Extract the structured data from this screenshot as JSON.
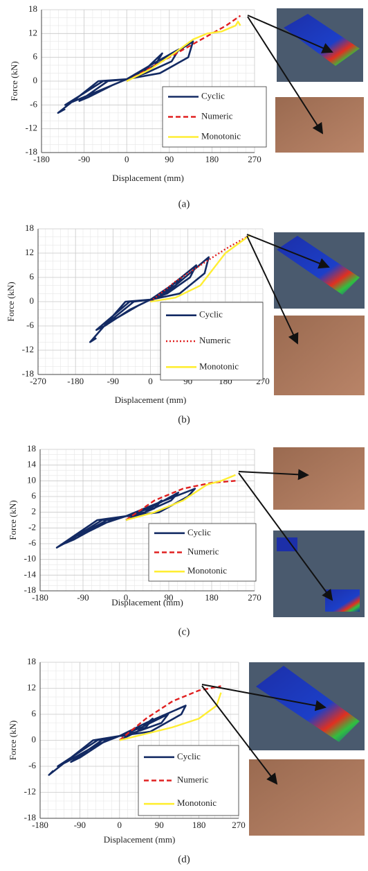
{
  "chart_data": [
    {
      "type": "line",
      "caption": "(a)",
      "y_label": "Force (kN)",
      "x_label": "Displacement (mm)",
      "xlim": [
        -180,
        270
      ],
      "xticks": [
        -180,
        -90,
        0,
        90,
        180,
        270
      ],
      "ylim": [
        -18,
        18
      ],
      "yticks": [
        -18,
        -12,
        -6,
        0,
        6,
        12,
        18
      ],
      "grid": true,
      "legend": "lower right",
      "series": [
        {
          "name": "Cyclic",
          "color": "#132a63",
          "dash": "solid",
          "x": [
            0,
            40,
            75,
            60,
            20,
            0,
            -40,
            -100,
            -80,
            -30,
            0,
            50,
            110,
            95,
            40,
            0,
            -50,
            -130,
            -110,
            -50,
            0,
            60,
            140,
            130,
            70,
            0,
            -60,
            -145,
            -130
          ],
          "values": [
            0,
            3,
            7,
            4,
            1,
            0.5,
            0,
            -5,
            -4,
            -1,
            0.5,
            4,
            8,
            5,
            2,
            0.5,
            0,
            -6,
            -5,
            -2,
            0.5,
            4,
            10,
            6,
            2,
            0.5,
            0,
            -8,
            -7
          ]
        },
        {
          "name": "Numeric",
          "color": "#e02020",
          "dash": "dashed",
          "x": [
            0,
            60,
            120,
            180,
            210,
            240
          ],
          "values": [
            0,
            4,
            8,
            12,
            14,
            16.5
          ]
        },
        {
          "name": "Monotonic",
          "color": "#ffee33",
          "dash": "solid",
          "x": [
            0,
            50,
            100,
            140,
            170,
            200,
            220,
            230,
            235,
            240
          ],
          "values": [
            0,
            3,
            7,
            10.5,
            12,
            12.5,
            13.5,
            14,
            15,
            14
          ]
        }
      ]
    },
    {
      "type": "line",
      "caption": "(b)",
      "y_label": "Force (kN)",
      "x_label": "Displacement (mm)",
      "xlim": [
        -270,
        270
      ],
      "xticks": [
        -270,
        -180,
        -90,
        0,
        90,
        180,
        270
      ],
      "ylim": [
        -18,
        18
      ],
      "yticks": [
        -18,
        -12,
        -6,
        0,
        6,
        12,
        18
      ],
      "grid": true,
      "legend": "lower right",
      "series": [
        {
          "name": "Cyclic",
          "color": "#132a63",
          "dash": "solid",
          "x": [
            0,
            40,
            75,
            60,
            20,
            0,
            -40,
            -100,
            -80,
            -30,
            0,
            50,
            110,
            95,
            40,
            0,
            -50,
            -130,
            -110,
            -50,
            0,
            60,
            140,
            130,
            70,
            0,
            -60,
            -145,
            -130
          ],
          "values": [
            0,
            3,
            6,
            4,
            1,
            0.5,
            0,
            -5,
            -4,
            -1,
            0.5,
            4,
            9,
            6,
            2,
            0.5,
            0,
            -7,
            -6,
            -2,
            0.5,
            4,
            11,
            7,
            2,
            0.5,
            0,
            -10,
            -9
          ]
        },
        {
          "name": "Numeric",
          "color": "#e02020",
          "dash": "dotted",
          "x": [
            0,
            60,
            120,
            180,
            240
          ],
          "values": [
            0,
            5,
            9,
            13,
            16.5
          ]
        },
        {
          "name": "Monotonic",
          "color": "#ffee33",
          "dash": "solid",
          "x": [
            0,
            60,
            120,
            150,
            180,
            240
          ],
          "values": [
            0,
            1,
            4,
            8,
            12,
            16.5
          ]
        }
      ]
    },
    {
      "type": "line",
      "caption": "(c)",
      "y_label": "Force (kN)",
      "x_label": "Displacement (mm)",
      "xlim": [
        -180,
        270
      ],
      "xticks": [
        -180,
        -90,
        0,
        90,
        180,
        270
      ],
      "ylim": [
        -18,
        18
      ],
      "yticks": [
        -18,
        -14,
        -10,
        -6,
        -2,
        2,
        6,
        10,
        14,
        18
      ],
      "grid": true,
      "legend": "lower right",
      "series": [
        {
          "name": "Cyclic",
          "color": "#132a63",
          "dash": "solid",
          "x": [
            0,
            40,
            75,
            60,
            20,
            0,
            -40,
            -100,
            -80,
            -30,
            0,
            50,
            110,
            95,
            40,
            0,
            -50,
            -130,
            -110,
            -50,
            0,
            60,
            145,
            130,
            70,
            0,
            -60,
            -145,
            -130
          ],
          "values": [
            0,
            2,
            5,
            3,
            1,
            1,
            0,
            -4,
            -3,
            0,
            1,
            3,
            7,
            5,
            2,
            1,
            0,
            -6,
            -5,
            -1,
            1,
            4,
            8,
            6,
            2,
            1,
            0,
            -7,
            -6
          ]
        },
        {
          "name": "Numeric",
          "color": "#e02020",
          "dash": "dashed",
          "x": [
            0,
            60,
            120,
            180,
            230
          ],
          "values": [
            0,
            5,
            8,
            9.5,
            10
          ]
        },
        {
          "name": "Monotonic",
          "color": "#ffee33",
          "dash": "solid",
          "x": [
            0,
            60,
            120,
            170,
            200,
            230
          ],
          "values": [
            0,
            2,
            5,
            9,
            10,
            11.5
          ]
        }
      ]
    },
    {
      "type": "line",
      "caption": "(d)",
      "y_label": "Force (kN)",
      "x_label": "Displacement (mm)",
      "xlim": [
        -180,
        270
      ],
      "xticks": [
        -180,
        -90,
        0,
        90,
        180,
        270
      ],
      "ylim": [
        -18,
        18
      ],
      "yticks": [
        -18,
        -12,
        -6,
        0,
        6,
        12,
        18
      ],
      "grid": true,
      "legend": "lower right",
      "series": [
        {
          "name": "Cyclic",
          "color": "#132a63",
          "dash": "solid",
          "x": [
            0,
            40,
            75,
            60,
            20,
            0,
            -40,
            -110,
            -90,
            -30,
            0,
            50,
            110,
            95,
            40,
            0,
            -50,
            -140,
            -120,
            -50,
            0,
            60,
            150,
            140,
            70,
            0,
            -60,
            -160,
            -150
          ],
          "values": [
            0,
            2,
            5,
            3,
            1,
            1,
            0,
            -5,
            -4,
            0,
            1,
            3,
            6,
            4,
            2,
            1,
            0,
            -6,
            -5,
            -1,
            1,
            4,
            8,
            6,
            2,
            1,
            0,
            -8,
            -7
          ]
        },
        {
          "name": "Numeric",
          "color": "#e02020",
          "dash": "dashed",
          "x": [
            0,
            60,
            120,
            180,
            230
          ],
          "values": [
            0,
            5,
            9,
            11.5,
            12.5
          ]
        },
        {
          "name": "Monotonic",
          "color": "#ffee33",
          "dash": "solid",
          "x": [
            0,
            60,
            120,
            180,
            220,
            230
          ],
          "values": [
            0,
            1.5,
            3,
            5,
            8,
            11
          ]
        }
      ]
    }
  ]
}
